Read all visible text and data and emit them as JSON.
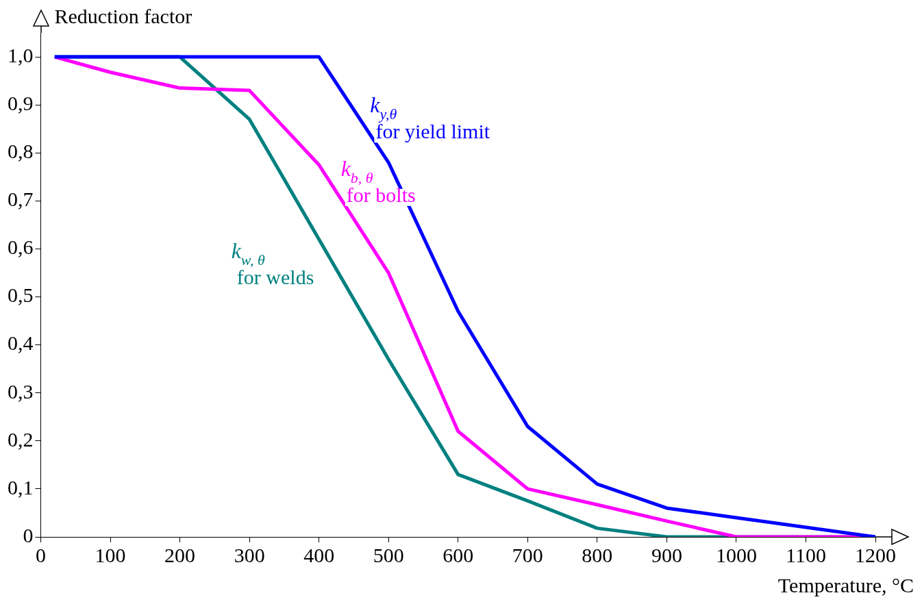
{
  "chart_data": {
    "type": "line",
    "xlabel": "Temperature, °C",
    "ylabel": "Reduction factor",
    "xlim": [
      0,
      1200
    ],
    "ylim": [
      0,
      1.05
    ],
    "xticks": [
      0,
      100,
      200,
      300,
      400,
      500,
      600,
      700,
      800,
      900,
      1000,
      1100,
      1200
    ],
    "yticks": [
      {
        "value": 0,
        "label": "0"
      },
      {
        "value": 0.1,
        "label": "0,1"
      },
      {
        "value": 0.2,
        "label": "0,2"
      },
      {
        "value": 0.3,
        "label": "0,3"
      },
      {
        "value": 0.4,
        "label": "0,4"
      },
      {
        "value": 0.5,
        "label": "0,5"
      },
      {
        "value": 0.6,
        "label": "0,6"
      },
      {
        "value": 0.7,
        "label": "0,7"
      },
      {
        "value": 0.8,
        "label": "0,8"
      },
      {
        "value": 0.9,
        "label": "0,9"
      },
      {
        "value": 1.0,
        "label": "1,0"
      }
    ],
    "x": [
      20,
      100,
      200,
      300,
      400,
      500,
      600,
      700,
      800,
      900,
      1000,
      1100,
      1200
    ],
    "grid": false,
    "legend": false,
    "marker": "none",
    "line_style": "solid",
    "series": [
      {
        "name": "k$_{y,θ}$ for yield limit",
        "color": "#0000ff",
        "values": [
          1,
          1,
          1,
          1,
          1,
          0.78,
          0.47,
          0.23,
          0.11,
          0.06,
          0.04,
          0.02,
          0
        ]
      },
      {
        "name": "k$_{b, θ}$ for bolts",
        "color": "#ff00ff",
        "values": [
          1,
          0.968,
          0.935,
          0.93,
          0.775,
          0.55,
          0.22,
          0.1,
          0.067,
          0.033,
          0,
          0,
          0
        ]
      },
      {
        "name": "k$_{w, θ}$ for welds",
        "color": "#008080",
        "values": [
          1,
          1,
          1,
          0.87,
          0.62,
          0.37,
          0.13,
          0.075,
          0.018,
          0,
          0,
          0,
          0
        ]
      }
    ]
  }
}
